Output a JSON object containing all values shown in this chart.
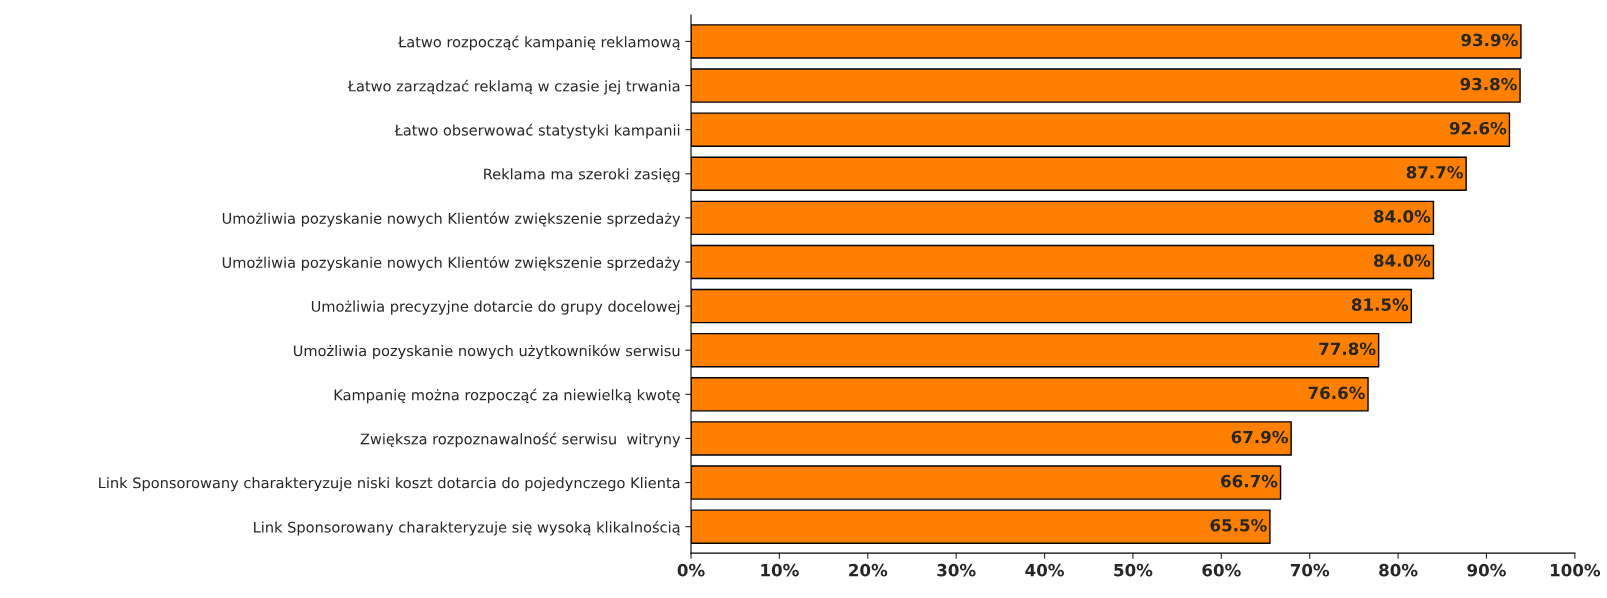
{
  "chart_data": {
    "type": "bar",
    "orientation": "horizontal",
    "categories": [
      "Łatwo rozpocząć kampanię reklamową",
      "Łatwo zarządzać reklamą w czasie jej trwania",
      "Łatwo obserwować statystyki kampanii",
      "Reklama ma szeroki zasięg",
      "Umożliwia pozyskanie nowych Klientów zwiększenie sprzedaży",
      "Umożliwia pozyskanie nowych Klientów zwiększenie sprzedaży",
      "Umożliwia precyzyjne dotarcie do grupy docelowej",
      "Umożliwia pozyskanie nowych użytkowników serwisu",
      "Kampanię można rozpocząć za niewielką kwotę",
      "Zwiększa rozpoznawalność serwisu  witryny",
      "Link Sponsorowany charakteryzuje niski koszt dotarcia do pojedynczego Klienta",
      "Link Sponsorowany charakteryzuje się wysoką klikalnością"
    ],
    "values": [
      93.9,
      93.8,
      92.6,
      87.7,
      84.0,
      84.0,
      81.5,
      77.8,
      76.6,
      67.9,
      66.7,
      65.5
    ],
    "value_labels": [
      "93.9%",
      "93.8%",
      "92.6%",
      "87.7%",
      "84.0%",
      "84.0%",
      "81.5%",
      "77.8%",
      "76.6%",
      "67.9%",
      "66.7%",
      "65.5%"
    ],
    "color": "#ff8000",
    "xlim": [
      0,
      100
    ],
    "xticks": [
      {
        "value": 0,
        "label": "0%"
      },
      {
        "value": 10,
        "label": "10%"
      },
      {
        "value": 20,
        "label": "20%"
      },
      {
        "value": 30,
        "label": "30%"
      },
      {
        "value": 40,
        "label": "40%"
      },
      {
        "value": 50,
        "label": "50%"
      },
      {
        "value": 60,
        "label": "60%"
      },
      {
        "value": 70,
        "label": "70%"
      },
      {
        "value": 80,
        "label": "80%"
      },
      {
        "value": 90,
        "label": "90%"
      },
      {
        "value": 100,
        "label": "100%"
      }
    ],
    "grid": false,
    "legend": false
  }
}
